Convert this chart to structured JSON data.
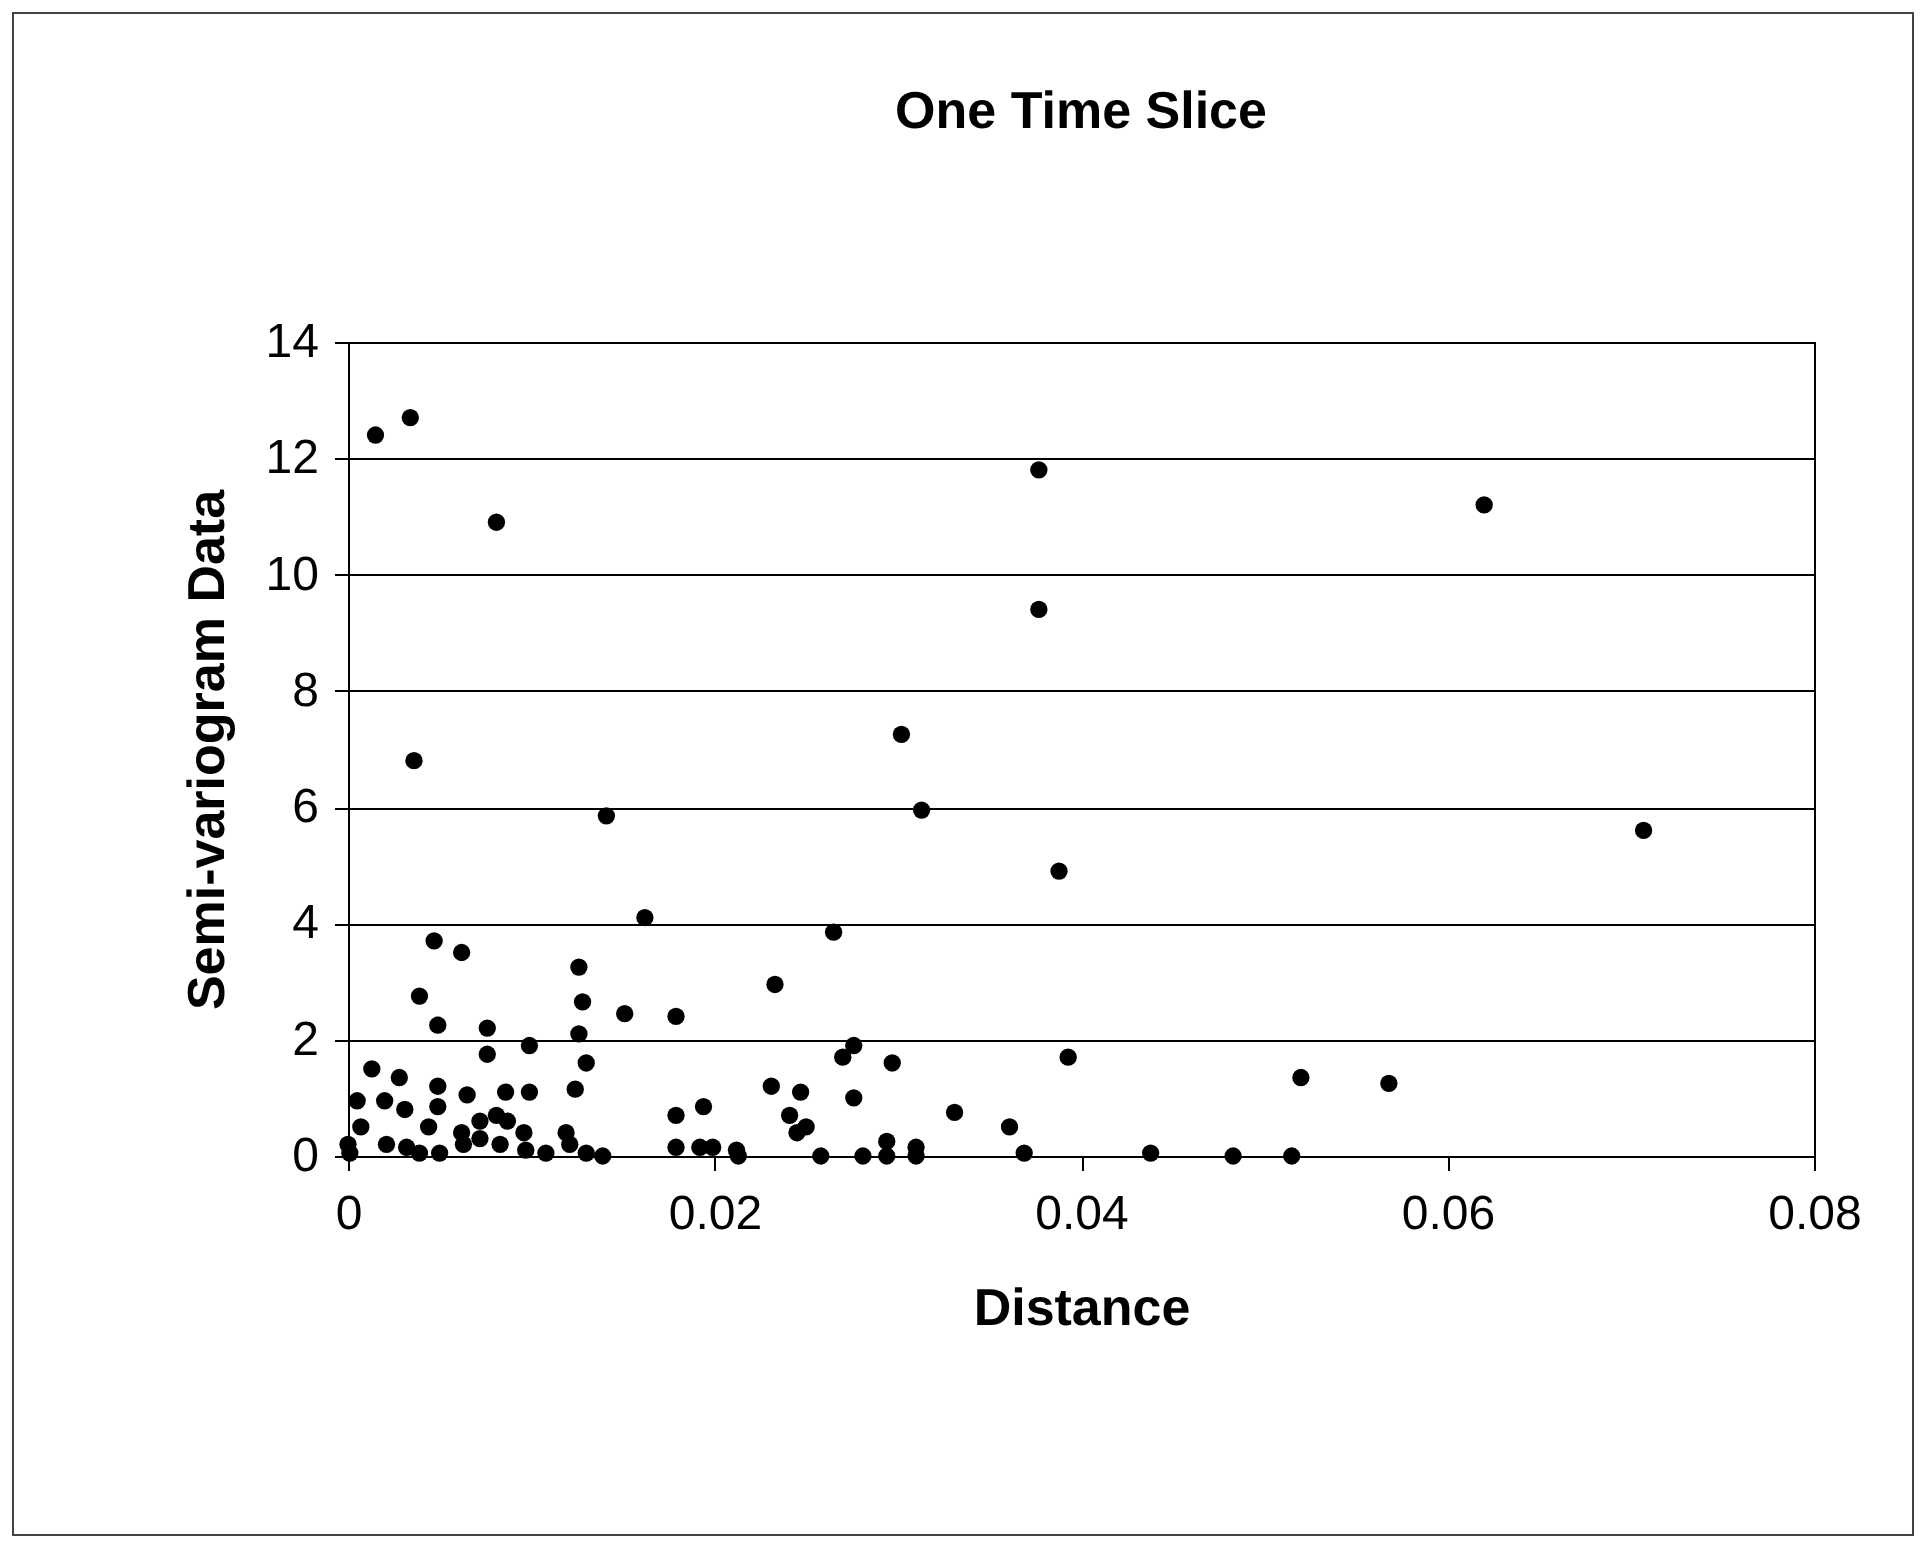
{
  "chart_data": {
    "type": "scatter",
    "title": "One Time Slice",
    "xlabel": "Distance",
    "ylabel": "Semi-variogram Data",
    "xlim": [
      0,
      0.08
    ],
    "xticks": [
      0,
      0.02,
      0.04,
      0.06,
      0.08
    ],
    "ylim": [
      0,
      14
    ],
    "yticks": [
      0,
      2,
      4,
      6,
      8,
      10,
      12,
      14
    ],
    "grid": "y",
    "legend": false,
    "marker": "circle",
    "series": [
      {
        "color": "#000000",
        "x": [
          0.0015,
          0.0034,
          0.0081,
          0.0377,
          0.062,
          0.0377,
          0.0036,
          0.0302,
          0.0141,
          0.0313,
          0.0707,
          0.0388,
          0.0162,
          0.0265,
          0.0233,
          0.0047,
          0.0062,
          0.0039,
          0.0049,
          0.0076,
          0.0076,
          0.0099,
          0.0126,
          0.0128,
          0.0126,
          0.013,
          0.0124,
          0.0151,
          0.0179,
          0.0179,
          0.0194,
          0.0013,
          0.0028,
          0.0005,
          0.002,
          0.0031,
          0.0049,
          0.0049,
          0.0065,
          0.0086,
          0.0099,
          0.0044,
          0.0062,
          0.0072,
          0.0081,
          0.0087,
          0.0096,
          0.0119,
          0,
          0.0007,
          0.0001,
          0.0021,
          0.0032,
          0.0039,
          0.005,
          0.0063,
          0.0072,
          0.0083,
          0.0097,
          0.0108,
          0.0121,
          0.013,
          0.0139,
          0.0179,
          0.0192,
          0.0276,
          0.027,
          0.0297,
          0.0393,
          0.0231,
          0.0247,
          0.0276,
          0.0241,
          0.025,
          0.0245,
          0.0331,
          0.0361,
          0.0199,
          0.0212,
          0.0213,
          0.0258,
          0.0281,
          0.0294,
          0.0294,
          0.031,
          0.031,
          0.0369,
          0.0438,
          0.052,
          0.0568,
          0.0483,
          0.0515
        ],
        "values": [
          12.4,
          12.7,
          10.9,
          11.8,
          11.2,
          9.4,
          6.8,
          7.25,
          5.85,
          5.95,
          5.6,
          4.9,
          4.1,
          3.85,
          2.95,
          3.7,
          3.5,
          2.75,
          2.25,
          2.2,
          1.75,
          1.9,
          3.25,
          2.65,
          2.1,
          1.6,
          1.15,
          2.45,
          2.4,
          0.7,
          0.85,
          1.5,
          1.35,
          0.95,
          0.95,
          0.8,
          1.2,
          0.85,
          1.05,
          1.1,
          1.1,
          0.5,
          0.4,
          0.6,
          0.7,
          0.6,
          0.4,
          0.4,
          0.2,
          0.5,
          0.05,
          0.2,
          0.15,
          0.05,
          0.05,
          0.2,
          0.3,
          0.2,
          0.1,
          0.05,
          0.2,
          0.05,
          0,
          0.15,
          0.15,
          1.9,
          1.7,
          1.6,
          1.7,
          1.2,
          1.1,
          1,
          0.7,
          0.5,
          0.4,
          0.75,
          0.5,
          0.15,
          0.1,
          0,
          0,
          0,
          0.25,
          0,
          0.15,
          0,
          0.05,
          0.05,
          1.35,
          1.25,
          0,
          0
        ]
      }
    ]
  }
}
